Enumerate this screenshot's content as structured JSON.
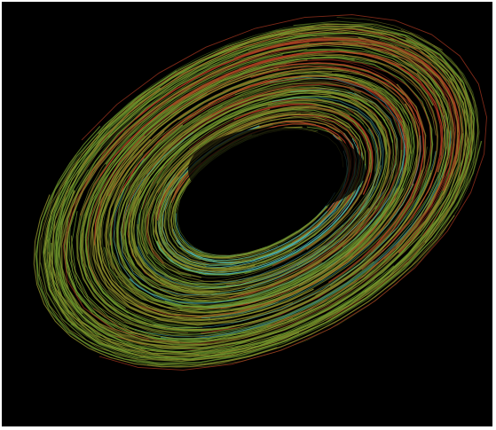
{
  "image": {
    "background_color": "#000000",
    "frame_color": "#ffffff",
    "fiber_colors": {
      "green": "#6f9a2e",
      "olive": "#8a8a2a",
      "red": "#b03a22",
      "cyan": "#4fb5b0"
    }
  }
}
